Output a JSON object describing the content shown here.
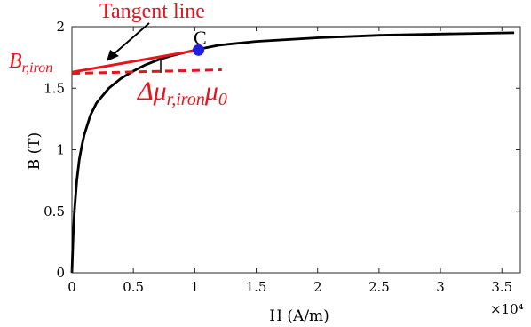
{
  "chart_data": {
    "type": "line",
    "title": "",
    "xlabel": "H (A/m)",
    "ylabel": "B (T)",
    "x_multiplier_label": "×10⁴",
    "x_tick_scale": 10000,
    "xlim": [
      0,
      3.65
    ],
    "ylim": [
      0,
      2
    ],
    "xticks": [
      0,
      0.5,
      1,
      1.5,
      2,
      2.5,
      3,
      3.5
    ],
    "xtick_labels": [
      "0",
      "0.5",
      "1",
      "1.5",
      "2",
      "2.5",
      "3",
      "3.5"
    ],
    "yticks": [
      0,
      0.5,
      1,
      1.5,
      2
    ],
    "ytick_labels": [
      "0",
      "0.5",
      "1",
      "1.5",
      "2"
    ],
    "grid": false,
    "series": [
      {
        "color": "#000000",
        "style": "solid",
        "x": [
          0.0,
          0.01,
          0.02,
          0.04,
          0.06,
          0.08,
          0.1,
          0.15,
          0.2,
          0.3,
          0.4,
          0.5,
          0.6,
          0.7,
          0.8,
          1.0,
          1.2,
          1.5,
          2.0,
          2.5,
          3.0,
          3.6
        ],
        "y": [
          0.0,
          0.3,
          0.5,
          0.75,
          0.92,
          1.03,
          1.12,
          1.28,
          1.38,
          1.5,
          1.58,
          1.64,
          1.69,
          1.73,
          1.76,
          1.81,
          1.85,
          1.88,
          1.91,
          1.93,
          1.94,
          1.95
        ]
      },
      {
        "color": "#e8141c",
        "style": "solid",
        "x": [
          0.0,
          1.03
        ],
        "y": [
          1.63,
          1.81
        ]
      },
      {
        "color": "#e8141c",
        "style": "dashed",
        "x": [
          0.0,
          1.22
        ],
        "y": [
          1.62,
          1.65
        ]
      }
    ],
    "point": {
      "label": "C",
      "x": 1.03,
      "y": 1.81,
      "color": "#1f1fe0"
    },
    "annotations": {
      "tangent_label": "Tangent line",
      "br_main": "B",
      "br_sub": "r,iron",
      "delta_pre": "Δμ",
      "delta_sub1": "r,iron",
      "delta_mid": "μ",
      "delta_sub2": "0"
    },
    "colors": {
      "curve": "#000000",
      "tangent": "#e8141c",
      "point": "#1f1fe0"
    }
  }
}
